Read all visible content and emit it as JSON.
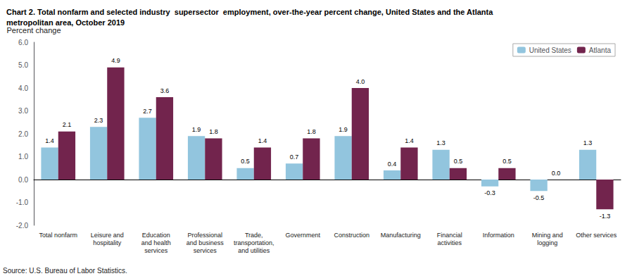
{
  "chart_data": {
    "type": "bar",
    "title": "Chart 2. Total nonfarm and selected industry  supersector  employment, over-the-year percent change, United States and the Atlanta\nmetropolitan area, October 2019",
    "ylabel": "Percent change",
    "annotations": [
      "Source: U.S. Bureau of Labor Statistics."
    ],
    "categories": [
      "Total nonfarm",
      "Leisure and\nhospitality",
      "Education\nand health\nservices",
      "Professional\nand business\nservices",
      "Trade,\ntransportation,\nand utilities",
      "Government",
      "Construction",
      "Manufacturing",
      "Financial\nactivities",
      "Information",
      "Mining and\nlogging",
      "Other services"
    ],
    "series": [
      {
        "name": "United States",
        "color": "#92C5DE",
        "values": [
          1.4,
          2.3,
          2.7,
          1.9,
          0.5,
          0.7,
          1.9,
          0.4,
          1.3,
          -0.3,
          -0.5,
          1.3
        ]
      },
      {
        "name": "Atlanta",
        "color": "#72244D",
        "values": [
          2.1,
          4.9,
          3.6,
          1.8,
          1.4,
          1.8,
          4.0,
          1.4,
          0.5,
          0.5,
          0.0,
          -1.3
        ],
        "value_labels": [
          "2.1",
          "4.9",
          "3.6",
          "1.8",
          "1.4",
          "1.8",
          "4.0",
          "1.4",
          "0.5",
          "0.5",
          "0.0",
          "-1.3"
        ]
      }
    ],
    "ylim": [
      -2.0,
      6.0
    ],
    "yticks": [
      {
        "value": -2.0,
        "label": "-2.0"
      },
      {
        "value": -1.0,
        "label": "-1.0"
      },
      {
        "value": 0.0,
        "label": "0.0"
      },
      {
        "value": 1.0,
        "label": "1.0"
      },
      {
        "value": 2.0,
        "label": "2.0"
      },
      {
        "value": 3.0,
        "label": "3.0"
      },
      {
        "value": 4.0,
        "label": "4.0"
      },
      {
        "value": 5.0,
        "label": "5.0"
      },
      {
        "value": 6.0,
        "label": "6.0"
      }
    ],
    "grid": false,
    "legend": "upper right",
    "data_labels": true
  }
}
